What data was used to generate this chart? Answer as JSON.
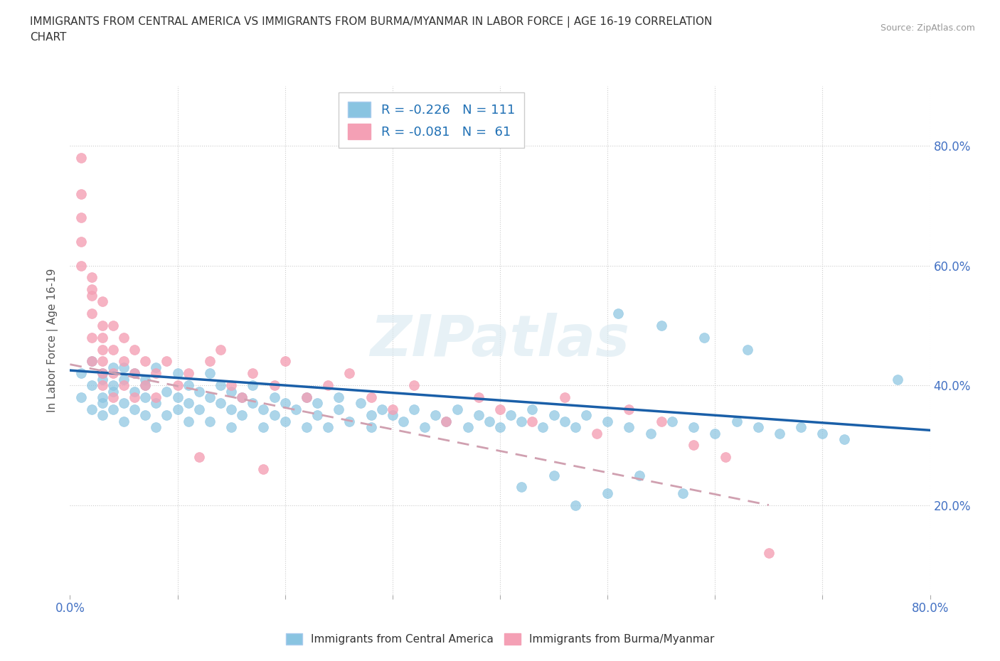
{
  "title": "IMMIGRANTS FROM CENTRAL AMERICA VS IMMIGRANTS FROM BURMA/MYANMAR IN LABOR FORCE | AGE 16-19 CORRELATION\nCHART",
  "source_text": "Source: ZipAtlas.com",
  "ylabel": "In Labor Force | Age 16-19",
  "xlim": [
    0.0,
    0.8
  ],
  "ylim": [
    0.05,
    0.9
  ],
  "y_ticks": [
    0.2,
    0.4,
    0.6,
    0.8
  ],
  "y_tick_labels": [
    "20.0%",
    "40.0%",
    "60.0%",
    "80.0%"
  ],
  "x_ticks": [
    0.0,
    0.1,
    0.2,
    0.3,
    0.4,
    0.5,
    0.6,
    0.7,
    0.8
  ],
  "x_tick_labels": [
    "0.0%",
    "",
    "",
    "",
    "",
    "",
    "",
    "",
    "80.0%"
  ],
  "blue_color": "#89c4e1",
  "pink_color": "#f4a0b5",
  "blue_line_color": "#1a5fa8",
  "pink_line_color": "#d0a0b0",
  "R_blue": -0.226,
  "N_blue": 111,
  "R_pink": -0.081,
  "N_pink": 61,
  "legend_label_blue": "Immigrants from Central America",
  "legend_label_pink": "Immigrants from Burma/Myanmar",
  "watermark": "ZIPatlas",
  "blue_scatter_x": [
    0.01,
    0.01,
    0.02,
    0.02,
    0.02,
    0.03,
    0.03,
    0.03,
    0.03,
    0.03,
    0.04,
    0.04,
    0.04,
    0.04,
    0.05,
    0.05,
    0.05,
    0.05,
    0.06,
    0.06,
    0.06,
    0.07,
    0.07,
    0.07,
    0.07,
    0.08,
    0.08,
    0.08,
    0.09,
    0.09,
    0.1,
    0.1,
    0.1,
    0.11,
    0.11,
    0.11,
    0.12,
    0.12,
    0.13,
    0.13,
    0.13,
    0.14,
    0.14,
    0.15,
    0.15,
    0.15,
    0.16,
    0.16,
    0.17,
    0.17,
    0.18,
    0.18,
    0.19,
    0.19,
    0.2,
    0.2,
    0.21,
    0.22,
    0.22,
    0.23,
    0.23,
    0.24,
    0.25,
    0.25,
    0.26,
    0.27,
    0.28,
    0.28,
    0.29,
    0.3,
    0.31,
    0.32,
    0.33,
    0.34,
    0.35,
    0.36,
    0.37,
    0.38,
    0.39,
    0.4,
    0.41,
    0.42,
    0.43,
    0.44,
    0.45,
    0.46,
    0.47,
    0.48,
    0.5,
    0.52,
    0.54,
    0.56,
    0.58,
    0.6,
    0.62,
    0.64,
    0.66,
    0.68,
    0.7,
    0.72,
    0.51,
    0.55,
    0.59,
    0.63,
    0.5,
    0.45,
    0.42,
    0.47,
    0.57,
    0.53,
    0.77
  ],
  "blue_scatter_y": [
    0.42,
    0.38,
    0.44,
    0.4,
    0.36,
    0.42,
    0.38,
    0.35,
    0.41,
    0.37,
    0.4,
    0.43,
    0.36,
    0.39,
    0.41,
    0.37,
    0.34,
    0.43,
    0.39,
    0.36,
    0.42,
    0.38,
    0.41,
    0.35,
    0.4,
    0.37,
    0.43,
    0.33,
    0.39,
    0.35,
    0.42,
    0.38,
    0.36,
    0.4,
    0.37,
    0.34,
    0.39,
    0.36,
    0.38,
    0.42,
    0.34,
    0.37,
    0.4,
    0.36,
    0.39,
    0.33,
    0.38,
    0.35,
    0.37,
    0.4,
    0.36,
    0.33,
    0.38,
    0.35,
    0.37,
    0.34,
    0.36,
    0.38,
    0.33,
    0.37,
    0.35,
    0.33,
    0.36,
    0.38,
    0.34,
    0.37,
    0.35,
    0.33,
    0.36,
    0.35,
    0.34,
    0.36,
    0.33,
    0.35,
    0.34,
    0.36,
    0.33,
    0.35,
    0.34,
    0.33,
    0.35,
    0.34,
    0.36,
    0.33,
    0.35,
    0.34,
    0.33,
    0.35,
    0.34,
    0.33,
    0.32,
    0.34,
    0.33,
    0.32,
    0.34,
    0.33,
    0.32,
    0.33,
    0.32,
    0.31,
    0.52,
    0.5,
    0.48,
    0.46,
    0.22,
    0.25,
    0.23,
    0.2,
    0.22,
    0.25,
    0.41
  ],
  "pink_scatter_x": [
    0.01,
    0.01,
    0.01,
    0.01,
    0.01,
    0.02,
    0.02,
    0.02,
    0.02,
    0.02,
    0.02,
    0.03,
    0.03,
    0.03,
    0.03,
    0.03,
    0.03,
    0.03,
    0.04,
    0.04,
    0.04,
    0.04,
    0.05,
    0.05,
    0.05,
    0.06,
    0.06,
    0.06,
    0.07,
    0.07,
    0.08,
    0.08,
    0.09,
    0.1,
    0.11,
    0.12,
    0.13,
    0.14,
    0.15,
    0.16,
    0.17,
    0.18,
    0.19,
    0.2,
    0.22,
    0.24,
    0.26,
    0.28,
    0.3,
    0.32,
    0.35,
    0.38,
    0.4,
    0.43,
    0.46,
    0.49,
    0.52,
    0.55,
    0.58,
    0.61,
    0.65
  ],
  "pink_scatter_y": [
    0.78,
    0.72,
    0.68,
    0.64,
    0.6,
    0.58,
    0.55,
    0.52,
    0.48,
    0.44,
    0.56,
    0.5,
    0.46,
    0.54,
    0.42,
    0.48,
    0.44,
    0.4,
    0.46,
    0.42,
    0.5,
    0.38,
    0.44,
    0.4,
    0.48,
    0.42,
    0.46,
    0.38,
    0.44,
    0.4,
    0.42,
    0.38,
    0.44,
    0.4,
    0.42,
    0.28,
    0.44,
    0.46,
    0.4,
    0.38,
    0.42,
    0.26,
    0.4,
    0.44,
    0.38,
    0.4,
    0.42,
    0.38,
    0.36,
    0.4,
    0.34,
    0.38,
    0.36,
    0.34,
    0.38,
    0.32,
    0.36,
    0.34,
    0.3,
    0.28,
    0.12
  ]
}
